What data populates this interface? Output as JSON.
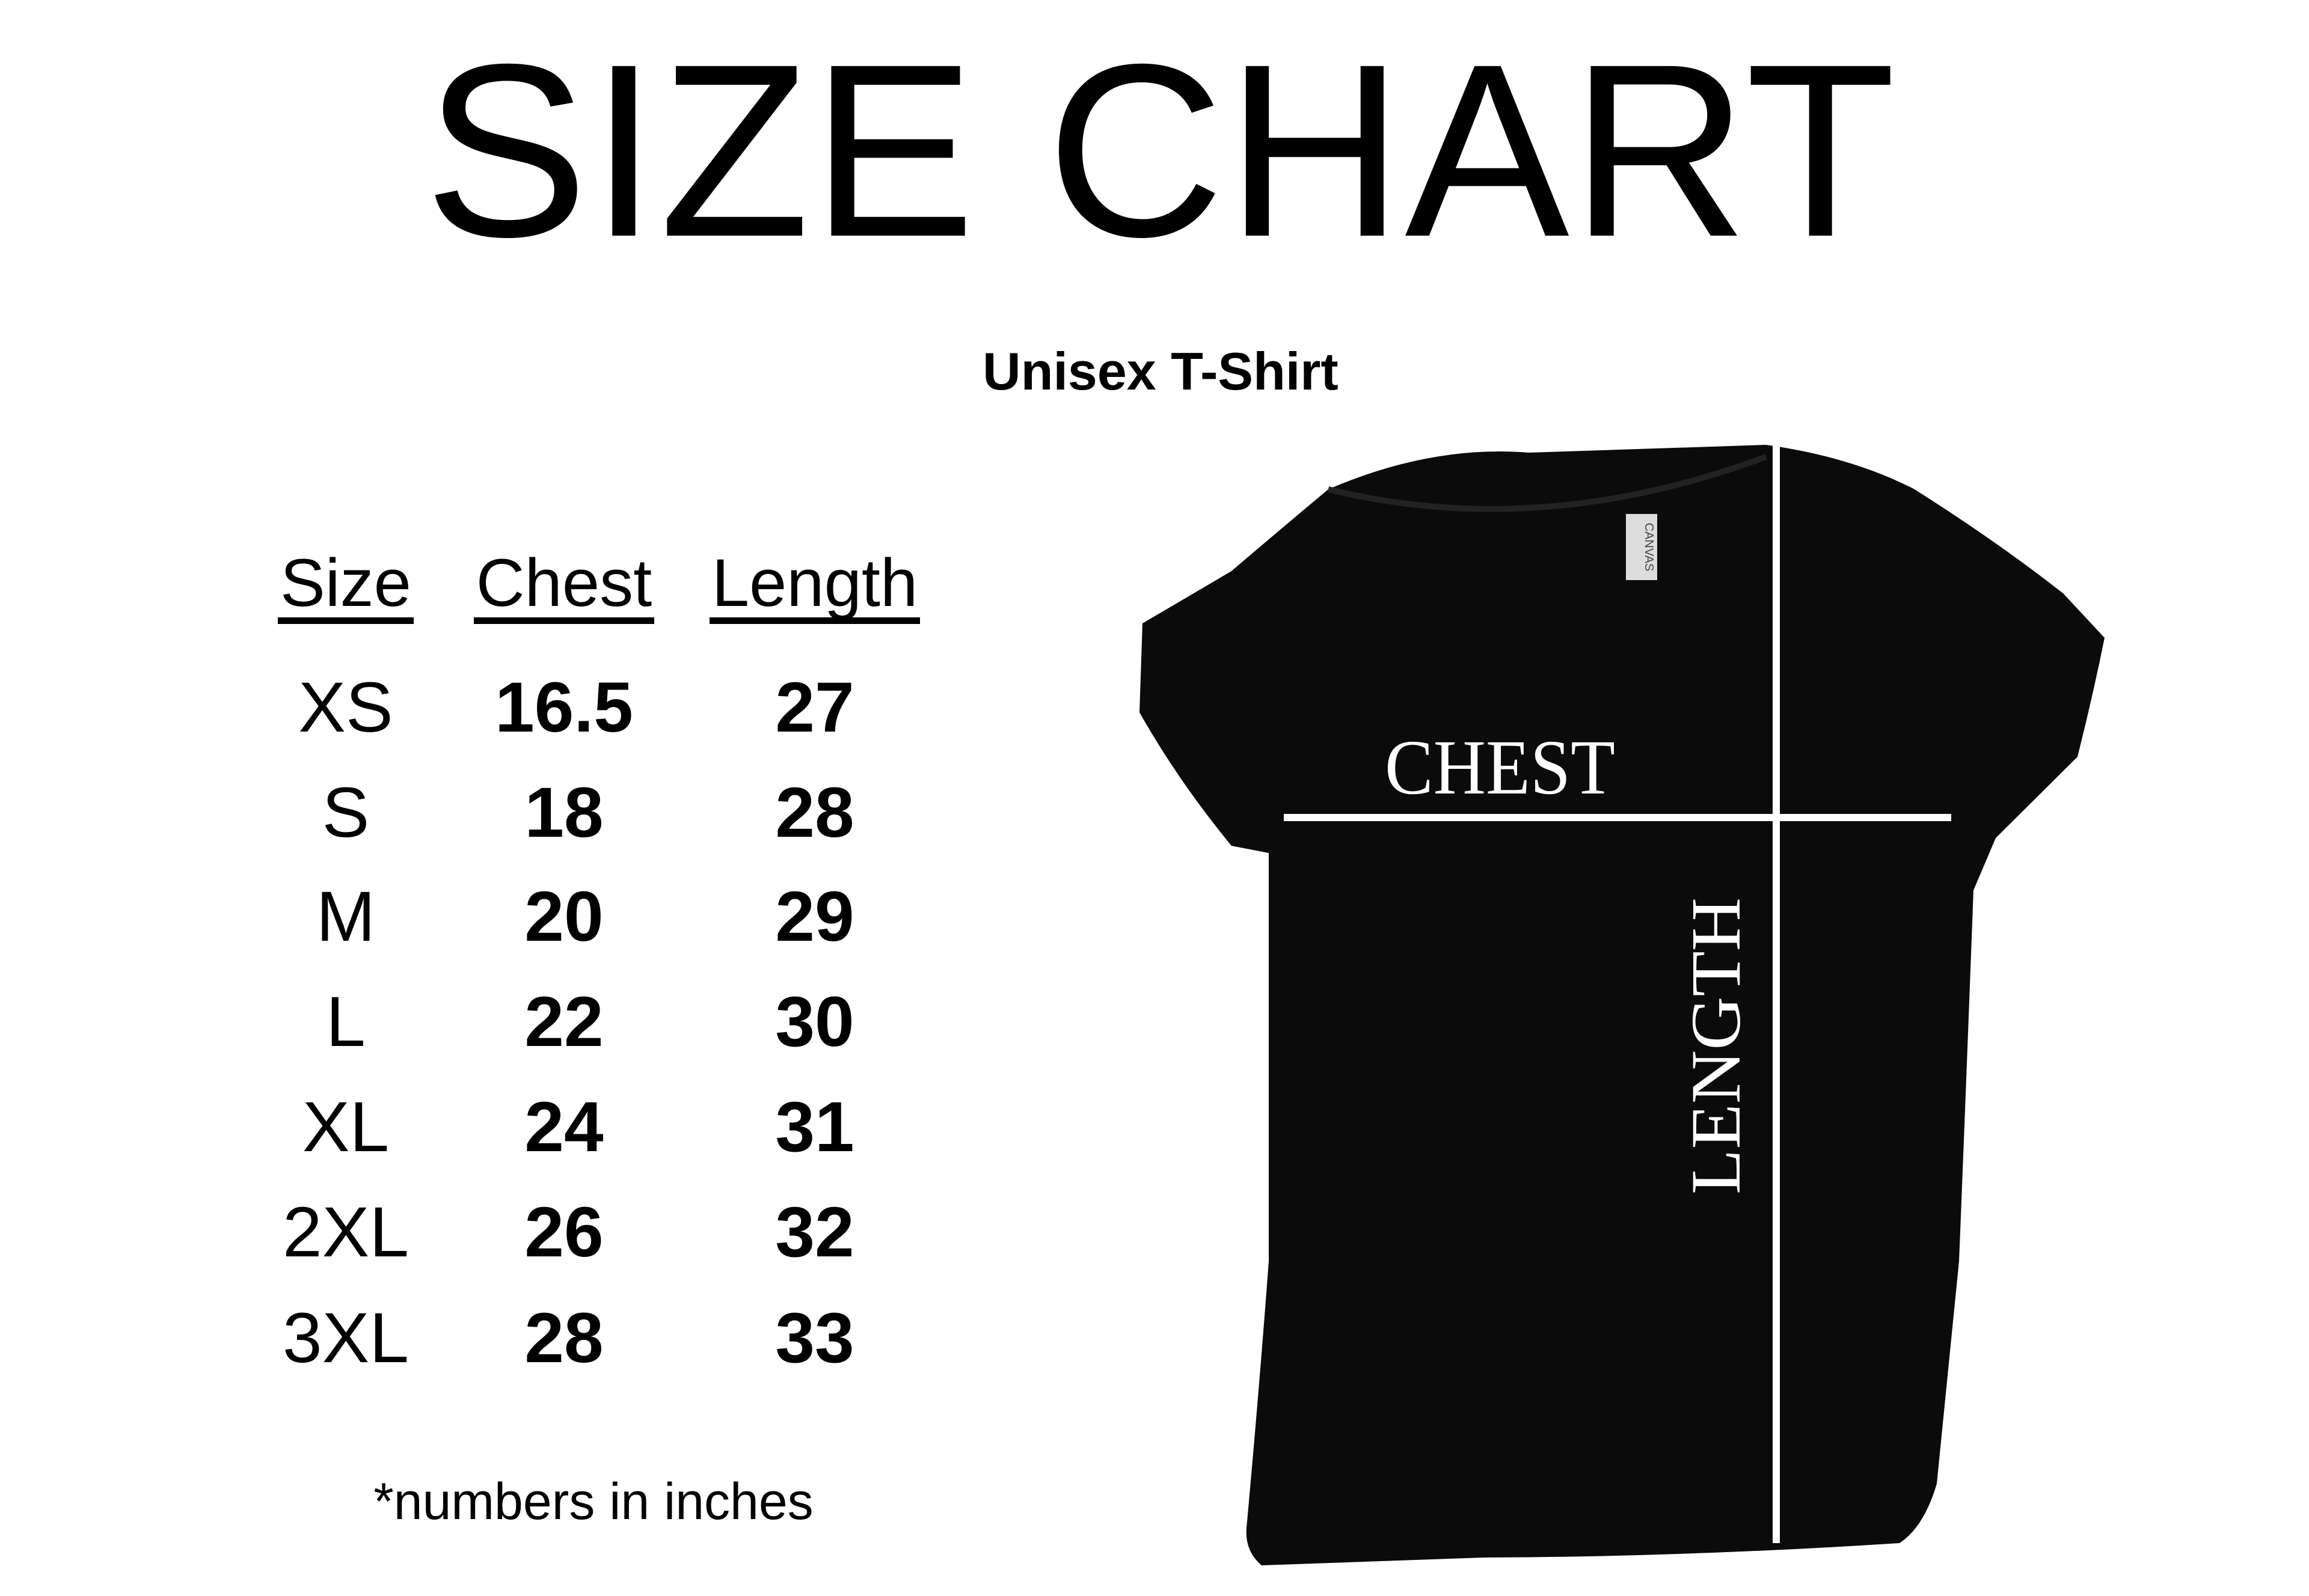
{
  "title": "SIZE CHART",
  "subtitle": "Unisex T-Shirt",
  "table": {
    "headers": [
      "Size",
      "Chest",
      "Length"
    ],
    "rows": [
      [
        "XS",
        "16.5",
        "27"
      ],
      [
        "S",
        "18",
        "28"
      ],
      [
        "M",
        "20",
        "29"
      ],
      [
        "L",
        "22",
        "30"
      ],
      [
        "XL",
        "24",
        "31"
      ],
      [
        "2XL",
        "26",
        "32"
      ],
      [
        "3XL",
        "28",
        "33"
      ]
    ]
  },
  "note": "*numbers in inches",
  "shirt": {
    "color": "#0b0b0b",
    "chest_label": "CHEST",
    "length_label": "LENGTH",
    "tag_text": "CANVAS"
  }
}
